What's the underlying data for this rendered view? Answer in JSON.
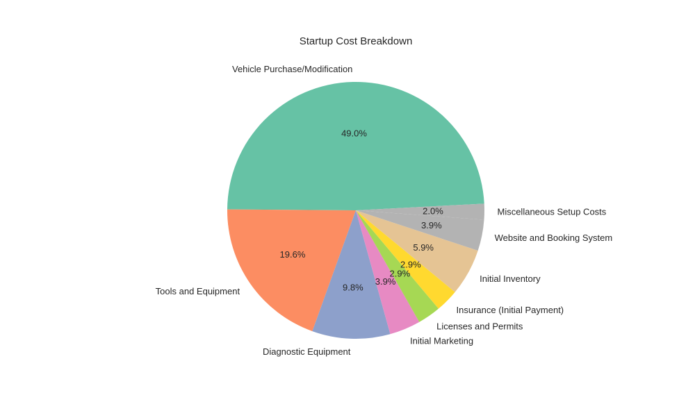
{
  "chart_data": {
    "type": "pie",
    "title": "Startup Cost Breakdown",
    "categories": [
      "Vehicle Purchase/Modification",
      "Tools and Equipment",
      "Diagnostic Equipment",
      "Initial Marketing",
      "Licenses and Permits",
      "Insurance (Initial Payment)",
      "Initial Inventory",
      "Website and Booking System",
      "Miscellaneous Setup Costs"
    ],
    "values": [
      49.0,
      19.6,
      9.8,
      3.9,
      2.9,
      2.9,
      5.9,
      3.9,
      2.0
    ],
    "value_labels": [
      "49.0%",
      "19.6%",
      "9.8%",
      "3.9%",
      "2.9%",
      "2.9%",
      "5.9%",
      "3.9%",
      "2.0%"
    ],
    "colors": [
      "#66c2a5",
      "#fc8d62",
      "#8da0cb",
      "#e78ac3",
      "#a6d854",
      "#ffd92f",
      "#e5c494",
      "#b3b3b3",
      "#b3b3b3"
    ],
    "start_angle_deg": 3,
    "direction": "counterclockwise",
    "legend": "none"
  }
}
